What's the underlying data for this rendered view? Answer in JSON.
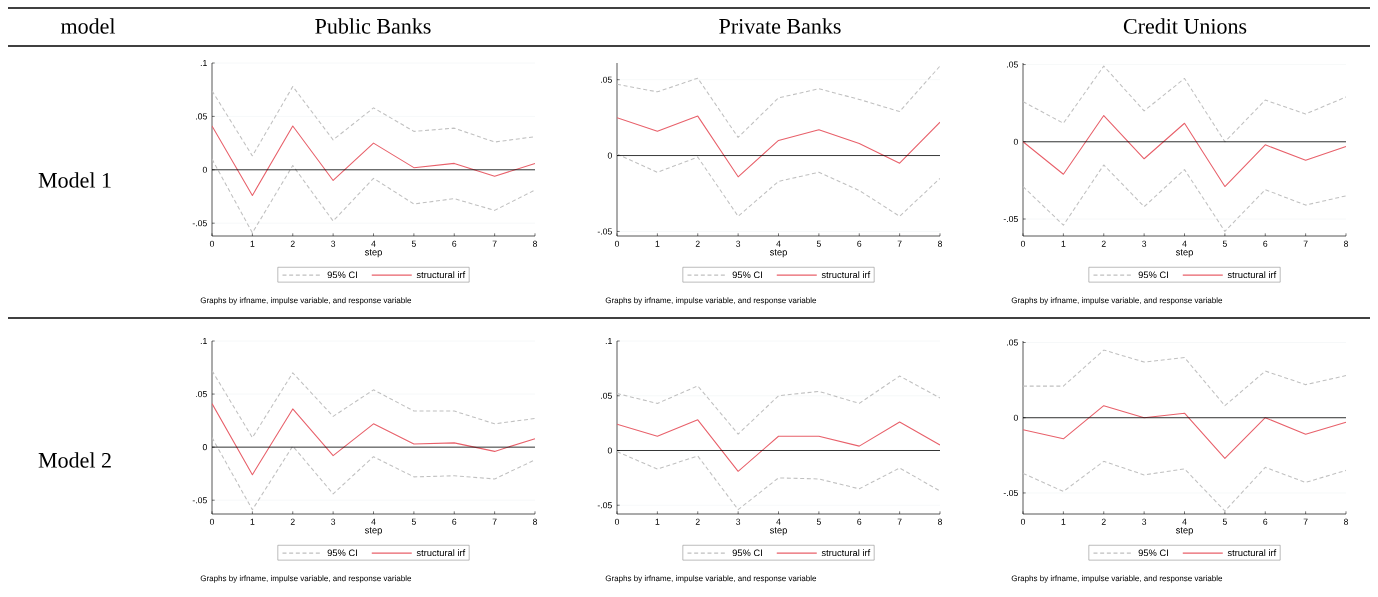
{
  "chart_data": [
    {
      "type": "line",
      "title": "Public Banks",
      "ylabel": "Model 1",
      "xlabel": "step",
      "x": [
        0,
        1,
        2,
        3,
        4,
        5,
        6,
        7,
        8
      ],
      "xlim": [
        0,
        8
      ],
      "xticks": [
        0,
        1,
        2,
        3,
        4,
        5,
        6,
        7,
        8
      ],
      "ylim": [
        -0.062,
        0.1
      ],
      "yticks": [
        {
          "value": -0.05,
          "label": "-.05"
        },
        0,
        {
          "value": 0.05,
          "label": ".05"
        },
        {
          "value": 0.1,
          "label": ".1"
        }
      ],
      "grid": "y",
      "legend": "bottom",
      "ref_lines": [
        {
          "axis": "y",
          "value": 0,
          "color": "#000000"
        }
      ],
      "annotations": [
        "Graphs by irfname, impulse variable, and response variable",
        "model"
      ],
      "series": [
        {
          "name": "95% CI",
          "color": "#c0c0c0",
          "line_style": "dashed",
          "values": [
            0.074,
            0.013,
            0.078,
            0.028,
            0.058,
            0.036,
            0.039,
            0.026,
            0.031
          ]
        },
        {
          "color": "#c0c0c0",
          "line_style": "dashed",
          "values": [
            0.01,
            -0.059,
            0.004,
            -0.048,
            -0.008,
            -0.032,
            -0.027,
            -0.038,
            -0.019
          ]
        },
        {
          "name": "structural irf",
          "color": "#e8606a",
          "line_style": "solid",
          "values": [
            0.041,
            -0.024,
            0.041,
            -0.01,
            0.025,
            0.002,
            0.006,
            -0.006,
            0.006
          ]
        }
      ]
    },
    {
      "type": "line",
      "title": "Private Banks",
      "xlabel": "step",
      "x": [
        0,
        1,
        2,
        3,
        4,
        5,
        6,
        7,
        8
      ],
      "xlim": [
        0,
        8
      ],
      "xticks": [
        0,
        1,
        2,
        3,
        4,
        5,
        6,
        7,
        8
      ],
      "ylim": [
        -0.053,
        0.061
      ],
      "yticks": [
        {
          "value": -0.05,
          "label": "-.05"
        },
        0,
        {
          "value": 0.05,
          "label": ".05"
        }
      ],
      "grid": "y",
      "legend": "bottom",
      "ref_lines": [
        {
          "axis": "y",
          "value": 0,
          "color": "#000000"
        }
      ],
      "annotations": [
        "Graphs by irfname, impulse variable, and response variable"
      ],
      "series": [
        {
          "name": "95% CI",
          "color": "#c0c0c0",
          "line_style": "dashed",
          "values": [
            0.047,
            0.042,
            0.051,
            0.012,
            0.038,
            0.044,
            0.037,
            0.029,
            0.059
          ]
        },
        {
          "color": "#c0c0c0",
          "line_style": "dashed",
          "values": [
            0.001,
            -0.011,
            -0.001,
            -0.04,
            -0.017,
            -0.011,
            -0.023,
            -0.04,
            -0.015
          ]
        },
        {
          "name": "structural irf",
          "color": "#e8606a",
          "line_style": "solid",
          "values": [
            0.025,
            0.016,
            0.026,
            -0.014,
            0.01,
            0.017,
            0.008,
            -0.005,
            0.022
          ]
        }
      ]
    },
    {
      "type": "line",
      "title": "Credit Unions",
      "xlabel": "step",
      "x": [
        0,
        1,
        2,
        3,
        4,
        5,
        6,
        7,
        8
      ],
      "xlim": [
        0,
        8
      ],
      "xticks": [
        0,
        1,
        2,
        3,
        4,
        5,
        6,
        7,
        8
      ],
      "ylim": [
        -0.061,
        0.051
      ],
      "yticks": [
        {
          "value": -0.05,
          "label": "-.05"
        },
        0,
        {
          "value": 0.05,
          "label": ".05"
        }
      ],
      "grid": "y",
      "legend": "bottom",
      "ref_lines": [
        {
          "axis": "y",
          "value": 0,
          "color": "#000000"
        }
      ],
      "annotations": [
        "Graphs by irfname, impulse variable, and response variable"
      ],
      "series": [
        {
          "name": "95% CI",
          "color": "#c0c0c0",
          "line_style": "dashed",
          "values": [
            0.026,
            0.012,
            0.049,
            0.02,
            0.041,
            0,
            0.027,
            0.018,
            0.029
          ]
        },
        {
          "color": "#c0c0c0",
          "line_style": "dashed",
          "values": [
            -0.029,
            -0.054,
            -0.015,
            -0.042,
            -0.018,
            -0.058,
            -0.031,
            -0.041,
            -0.035
          ]
        },
        {
          "name": "structural irf",
          "color": "#e8606a",
          "line_style": "solid",
          "values": [
            0,
            -0.021,
            0.017,
            -0.011,
            0.012,
            -0.029,
            -0.002,
            -0.012,
            -0.003
          ]
        }
      ]
    },
    {
      "type": "line",
      "ylabel": "Model 2",
      "xlabel": "step",
      "x": [
        0,
        1,
        2,
        3,
        4,
        5,
        6,
        7,
        8
      ],
      "xlim": [
        0,
        8
      ],
      "xticks": [
        0,
        1,
        2,
        3,
        4,
        5,
        6,
        7,
        8
      ],
      "ylim": [
        -0.063,
        0.1
      ],
      "yticks": [
        {
          "value": -0.05,
          "label": "-.05"
        },
        0,
        {
          "value": 0.05,
          "label": ".05"
        },
        {
          "value": 0.1,
          "label": ".1"
        }
      ],
      "grid": "y",
      "legend": "bottom",
      "ref_lines": [
        {
          "axis": "y",
          "value": 0,
          "color": "#000000"
        }
      ],
      "annotations": [
        "Graphs by irfname, impulse variable, and response variable"
      ],
      "series": [
        {
          "name": "95% CI",
          "color": "#c0c0c0",
          "line_style": "dashed",
          "values": [
            0.072,
            0.009,
            0.07,
            0.029,
            0.054,
            0.034,
            0.034,
            0.022,
            0.027
          ]
        },
        {
          "color": "#c0c0c0",
          "line_style": "dashed",
          "values": [
            0.009,
            -0.059,
            0.001,
            -0.044,
            -0.009,
            -0.028,
            -0.027,
            -0.03,
            -0.012
          ]
        },
        {
          "name": "structural irf",
          "color": "#e8606a",
          "line_style": "solid",
          "values": [
            0.041,
            -0.026,
            0.036,
            -0.008,
            0.022,
            0.003,
            0.004,
            -0.004,
            0.008
          ]
        }
      ]
    },
    {
      "type": "line",
      "xlabel": "step",
      "x": [
        0,
        1,
        2,
        3,
        4,
        5,
        6,
        7,
        8
      ],
      "xlim": [
        0,
        8
      ],
      "xticks": [
        0,
        1,
        2,
        3,
        4,
        5,
        6,
        7,
        8
      ],
      "ylim": [
        -0.058,
        0.1
      ],
      "yticks": [
        {
          "value": -0.05,
          "label": "-.05"
        },
        0,
        {
          "value": 0.05,
          "label": ".05"
        },
        {
          "value": 0.1,
          "label": ".1"
        }
      ],
      "grid": "y",
      "legend": "bottom",
      "ref_lines": [
        {
          "axis": "y",
          "value": 0,
          "color": "#000000"
        }
      ],
      "annotations": [
        "Graphs by irfname, impulse variable, and response variable"
      ],
      "series": [
        {
          "name": "95% CI",
          "color": "#c0c0c0",
          "line_style": "dashed",
          "values": [
            0.052,
            0.043,
            0.059,
            0.015,
            0.05,
            0.054,
            0.043,
            0.068,
            0.048
          ]
        },
        {
          "color": "#c0c0c0",
          "line_style": "dashed",
          "values": [
            -0.001,
            -0.017,
            -0.005,
            -0.054,
            -0.025,
            -0.026,
            -0.035,
            -0.016,
            -0.037
          ]
        },
        {
          "name": "structural irf",
          "color": "#e8606a",
          "line_style": "solid",
          "values": [
            0.024,
            0.013,
            0.028,
            -0.019,
            0.013,
            0.013,
            0.004,
            0.026,
            0.005
          ]
        }
      ]
    },
    {
      "type": "line",
      "xlabel": "step",
      "x": [
        0,
        1,
        2,
        3,
        4,
        5,
        6,
        7,
        8
      ],
      "xlim": [
        0,
        8
      ],
      "xticks": [
        0,
        1,
        2,
        3,
        4,
        5,
        6,
        7,
        8
      ],
      "ylim": [
        -0.064,
        0.051
      ],
      "yticks": [
        {
          "value": -0.05,
          "label": "-.05"
        },
        0,
        {
          "value": 0.05,
          "label": ".05"
        }
      ],
      "grid": "y",
      "legend": "bottom",
      "ref_lines": [
        {
          "axis": "y",
          "value": 0,
          "color": "#000000"
        }
      ],
      "annotations": [
        "Graphs by irfname, impulse variable, and response variable"
      ],
      "series": [
        {
          "name": "95% CI",
          "color": "#c0c0c0",
          "line_style": "dashed",
          "values": [
            0.021,
            0.021,
            0.045,
            0.037,
            0.04,
            0.008,
            0.031,
            0.022,
            0.028
          ]
        },
        {
          "color": "#c0c0c0",
          "line_style": "dashed",
          "values": [
            -0.037,
            -0.049,
            -0.029,
            -0.038,
            -0.034,
            -0.062,
            -0.033,
            -0.043,
            -0.035
          ]
        },
        {
          "name": "structural irf",
          "color": "#e8606a",
          "line_style": "solid",
          "values": [
            -0.008,
            -0.014,
            0.008,
            0,
            0.003,
            -0.027,
            0,
            -0.011,
            -0.003
          ]
        }
      ]
    }
  ]
}
